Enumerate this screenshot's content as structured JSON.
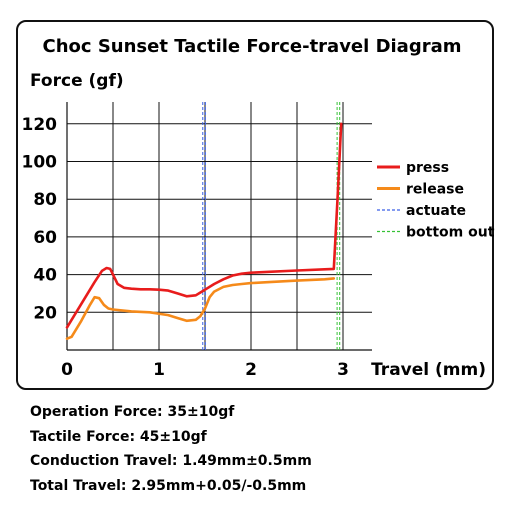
{
  "chart_data": {
    "type": "line",
    "title": "Choc Sunset Tactile Force-travel Diagram",
    "ylabel": "Force (gf)",
    "xlabel": "Travel (mm)",
    "xlim": [
      0,
      3.15
    ],
    "ylim": [
      0,
      125
    ],
    "xticks": [
      0,
      1,
      2,
      3
    ],
    "yticks": [
      20,
      40,
      60,
      80,
      100,
      120
    ],
    "grid": true,
    "legend_position": "right",
    "series": [
      {
        "name": "press",
        "color": "#e81c1c",
        "x": [
          0,
          0.1,
          0.2,
          0.3,
          0.38,
          0.43,
          0.47,
          0.5,
          0.55,
          0.62,
          0.7,
          0.8,
          0.9,
          1.0,
          1.1,
          1.2,
          1.3,
          1.4,
          1.45,
          1.5,
          1.6,
          1.7,
          1.8,
          1.9,
          2.0,
          2.2,
          2.5,
          2.8,
          2.9,
          2.94,
          2.98
        ],
        "y": [
          12,
          20,
          28,
          36,
          42,
          43.5,
          43,
          40,
          35,
          33,
          32.5,
          32.2,
          32.2,
          32,
          31.5,
          30,
          28.5,
          29,
          30.5,
          32,
          35,
          37.5,
          39.5,
          40.5,
          41,
          41.5,
          42.2,
          42.8,
          43,
          80,
          120
        ]
      },
      {
        "name": "release",
        "color": "#f58a1a",
        "x": [
          0,
          0.05,
          0.15,
          0.25,
          0.3,
          0.35,
          0.4,
          0.45,
          0.5,
          0.7,
          0.9,
          1.1,
          1.2,
          1.3,
          1.4,
          1.45,
          1.5,
          1.55,
          1.6,
          1.7,
          1.8,
          1.9,
          2.0,
          2.2,
          2.5,
          2.8,
          2.9
        ],
        "y": [
          6,
          7,
          15,
          24,
          28,
          27.5,
          24,
          22,
          21.5,
          20.5,
          20,
          18.5,
          17,
          15.5,
          16,
          18,
          22,
          28,
          31,
          33.5,
          34.5,
          35,
          35.5,
          36,
          36.8,
          37.5,
          38
        ]
      }
    ],
    "reference_lines": [
      {
        "name": "actuate",
        "x": 1.49,
        "color": "#3a5fe6"
      },
      {
        "name": "bottom out",
        "x": 2.95,
        "color": "#36c136"
      }
    ]
  },
  "specs": {
    "operation_force": "Operation Force: 35±10gf",
    "tactile_force": "Tactile Force: 45±10gf",
    "conduction_travel": "Conduction Travel: 1.49mm±0.5mm",
    "total_travel": "Total Travel: 2.95mm+0.05/-0.5mm"
  }
}
